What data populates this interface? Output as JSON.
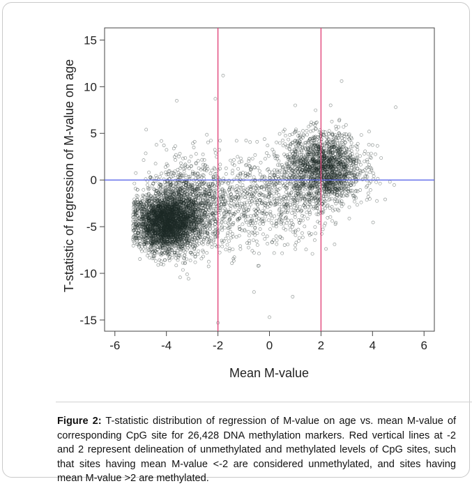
{
  "chart_data": {
    "type": "scatter",
    "xlabel": "Mean M-value",
    "ylabel": "T-statistic of regression of M-value on age",
    "xlim": [
      -6.4,
      6.4
    ],
    "ylim": [
      -16.2,
      16.3
    ],
    "xticks": [
      -6,
      -4,
      -2,
      0,
      2,
      4,
      6
    ],
    "yticks": [
      15,
      10,
      5,
      0,
      -5,
      -10,
      -15
    ],
    "grid": false,
    "n_points": 26428,
    "reference_lines": {
      "vertical": {
        "x": [
          -2,
          2
        ],
        "color": "#e0457a"
      },
      "horizontal": {
        "y": [
          0
        ],
        "color": "#5b67e8"
      }
    },
    "point_color": "#1d2a26",
    "clusters": [
      {
        "x_mean": -4.0,
        "y_mean": -4.6,
        "x_sd": 0.6,
        "y_sd": 1.5,
        "share": 0.44
      },
      {
        "x_mean": -3.2,
        "y_mean": -2.8,
        "x_sd": 0.8,
        "y_sd": 2.3,
        "share": 0.17
      },
      {
        "x_mean": 2.1,
        "y_mean": 1.2,
        "x_sd": 0.75,
        "y_sd": 1.9,
        "share": 0.27
      },
      {
        "x_mean": -0.3,
        "y_mean": -2.3,
        "x_sd": 1.3,
        "y_sd": 2.6,
        "share": 0.12
      }
    ],
    "outliers": [
      [
        -1.8,
        11.2
      ],
      [
        -2.1,
        8.7
      ],
      [
        2.8,
        10.6
      ],
      [
        1.0,
        8.0
      ],
      [
        0.0,
        -14.7
      ],
      [
        -2.0,
        -15.3
      ],
      [
        0.9,
        -12.5
      ],
      [
        -0.6,
        -12.0
      ],
      [
        4.9,
        7.8
      ],
      [
        -3.6,
        8.5
      ]
    ]
  },
  "caption": {
    "label": "Figure 2:",
    "text": "T-statistic distribution of regression of M-value on age vs. mean M-value of corresponding CpG site for 26,428 DNA methylation markers. Red vertical lines at -2 and 2 represent delineation of unmethylated and methylated levels of CpG sites, such that sites having mean M-value <-2 are considered unmethylated, and sites having mean M-value >2 are methylated."
  }
}
